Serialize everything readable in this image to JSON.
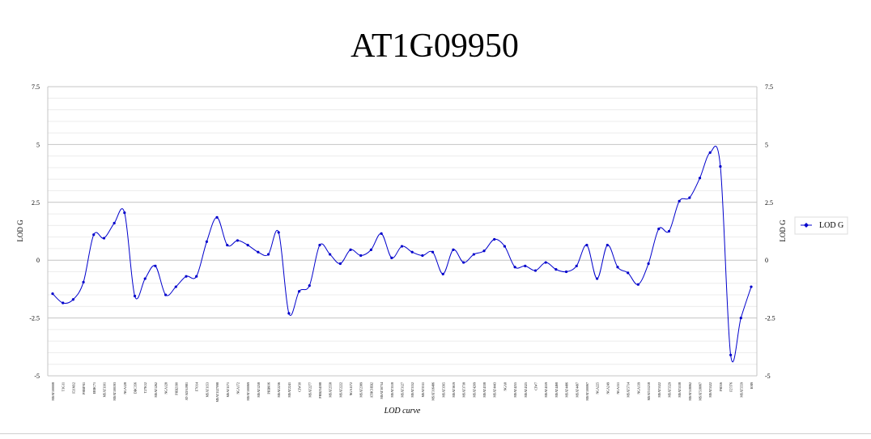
{
  "chart_data": {
    "type": "line",
    "title": "AT1G09950",
    "xlabel": "LOD curve",
    "ylabel": "LOD G",
    "y2label": "LOD G",
    "ylim": [
      -5,
      7.5
    ],
    "yticks": [
      7.5,
      5,
      2.5,
      0,
      -2.5,
      -5
    ],
    "grid": true,
    "legend": "right",
    "series": [
      {
        "name": "LOD G",
        "color": "#0000cc",
        "x": [
          "MSAT100008",
          "T1G11",
          "F21M12",
          "PHBFN1",
          "ERBC71",
          "MSAT1101",
          "MSAT100193",
          "NGA128",
          "DBC356",
          "T27K12",
          "MSAT1262",
          "NGA128",
          "PHB2190",
          "AT-ADA1981",
          "F7O14",
          "MSAT1153",
          "MSAT1127098",
          "MSAT1171",
          "NGA172",
          "MSAT100069",
          "MSAT1258",
          "PHB6O6",
          "MSAT2236",
          "MSAT2241",
          "CIW30",
          "MSAT2277",
          "PHB234598",
          "MSAT2558",
          "MSAT2222",
          "NGA1172",
          "MSAT2389",
          "ATHCHIB2",
          "MSAT30734",
          "MSAT3518",
          "MSAT3127",
          "MSAT3152",
          "MSAT3311",
          "MSAT316486",
          "MSAT3565",
          "MSAT3619",
          "MSAT3738",
          "MSAT4209",
          "MSAT4338",
          "MSAT4443",
          "NGA8",
          "MSAT4255",
          "MSAT4325",
          "CIW7",
          "MSAT4559",
          "MSAT4468",
          "MSAT4486",
          "MSAT4497",
          "MSAT100067",
          "NGA225",
          "NGA249",
          "NGA151",
          "MSAT5714",
          "NGA139",
          "MSAT511218",
          "MSAT5522",
          "MSAT5529",
          "MSAT5538",
          "MSAT518062",
          "MSAT518067",
          "MSAT5522",
          "F9D16",
          "F27J76",
          "MSAT5559",
          "K9I9"
        ],
        "y": [
          -1.45,
          -1.85,
          -1.7,
          -0.95,
          1.1,
          0.95,
          1.6,
          2.05,
          -1.55,
          -0.8,
          -0.25,
          -1.5,
          -1.15,
          -0.7,
          -0.7,
          0.8,
          1.85,
          0.65,
          0.85,
          0.65,
          0.35,
          0.25,
          1.2,
          -2.3,
          -1.35,
          -1.1,
          0.65,
          0.25,
          -0.15,
          0.45,
          0.2,
          0.45,
          1.15,
          0.1,
          0.6,
          0.35,
          0.2,
          0.35,
          -0.6,
          0.45,
          -0.1,
          0.25,
          0.4,
          0.9,
          0.6,
          -0.3,
          -0.25,
          -0.45,
          -0.1,
          -0.4,
          -0.5,
          -0.25,
          0.65,
          -0.8,
          0.65,
          -0.3,
          -0.55,
          -1.05,
          -0.15,
          1.35,
          1.25,
          2.55,
          2.7,
          3.55,
          4.65,
          4.05,
          -4.1,
          -2.5,
          -1.15
        ]
      }
    ]
  }
}
